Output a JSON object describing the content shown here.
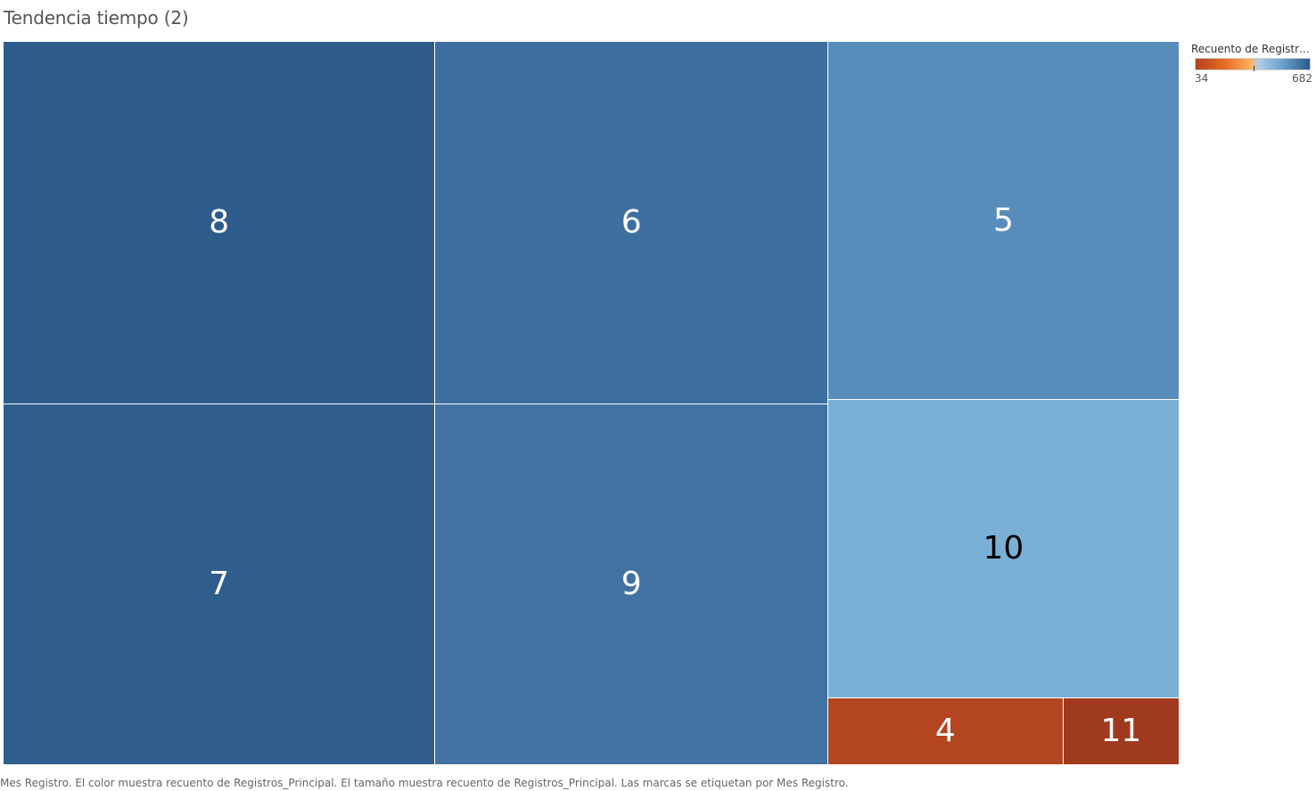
{
  "title": "Tendencia tiempo (2)",
  "caption": "Mes Registro. El color muestra recuento de Registros_Principal. El tamaño muestra recuento de Registros_Principal. Las marcas se etiquetan por Mes Registro.",
  "legend": {
    "title": "Recuento de Registros..",
    "min_label": "34",
    "max_label": "682"
  },
  "chart_data": {
    "type": "treemap",
    "title": "Tendencia tiempo (2)",
    "size_measure": "Recuento de Registros_Principal",
    "color_measure": "Recuento de Registros_Principal",
    "label_field": "Mes Registro",
    "color_range": [
      34,
      682
    ],
    "color_scale": {
      "type": "diverging",
      "low": "#b5421f",
      "mid": "#fdb15e",
      "high": "#2b5a8a"
    },
    "items": [
      {
        "label": "8",
        "value": 682,
        "color": "#2e5c8a"
      },
      {
        "label": "7",
        "value": 680,
        "color": "#305e8c"
      },
      {
        "label": "6",
        "value": 620,
        "color": "#3d6fa1"
      },
      {
        "label": "9",
        "value": 618,
        "color": "#4272a2"
      },
      {
        "label": "5",
        "value": 548,
        "color": "#588cbb"
      },
      {
        "label": "10",
        "value": 457,
        "color": "#7bb0d6"
      },
      {
        "label": "4",
        "value": 69,
        "color": "#b34520"
      },
      {
        "label": "11",
        "value": 34,
        "color": "#a03a1e"
      }
    ]
  }
}
